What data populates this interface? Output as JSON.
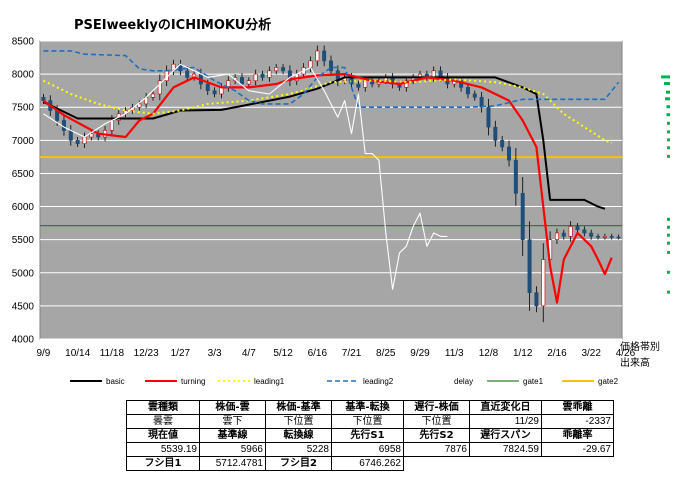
{
  "title": "PSEIweeklyのICHIMOKU分析",
  "volume_label": [
    "価格帯別",
    "出来高"
  ],
  "chart_data": {
    "type": "line",
    "title": "PSEIweeklyのICHIMOKU分析",
    "ylim": [
      4000,
      8500
    ],
    "yticks": [
      4000,
      4500,
      5000,
      5500,
      6000,
      6500,
      7000,
      7500,
      8000,
      8500
    ],
    "x_tick_labels": [
      "9/9",
      "10/14",
      "11/18",
      "12/23",
      "1/27",
      "3/3",
      "4/7",
      "5/12",
      "6/16",
      "7/21",
      "8/25",
      "9/29",
      "11/3",
      "12/8",
      "1/12",
      "2/16",
      "3/22",
      "4/26"
    ],
    "legend": [
      "basic",
      "turning",
      "leading1",
      "leading2",
      "delay",
      "gate1",
      "gate2"
    ],
    "colors": {
      "basic": "#000000",
      "turning": "#ff0000",
      "leading1": "#ffff00",
      "leading2": "#1f6fc0",
      "delay": "#ffffff",
      "gate1": "#2e7d32",
      "gate2": "#ffc000",
      "plot_bg": "#a6a6a6",
      "up": "#ffffff",
      "down": "#1f4e79",
      "volume": "#00b050"
    },
    "gate1": 5712.4781,
    "gate2": 6746.262,
    "series": [
      {
        "name": "basic",
        "values": [
          [
            0,
            7580
          ],
          [
            5,
            7330
          ],
          [
            16,
            7330
          ],
          [
            20,
            7450
          ],
          [
            26,
            7460
          ],
          [
            30,
            7540
          ],
          [
            36,
            7660
          ],
          [
            40,
            7780
          ],
          [
            44,
            7950
          ],
          [
            52,
            7950
          ],
          [
            62,
            7950
          ],
          [
            66,
            7950
          ],
          [
            70,
            7800
          ],
          [
            72,
            7700
          ],
          [
            73,
            7000
          ],
          [
            74,
            6100
          ],
          [
            79,
            6100
          ],
          [
            81,
            6000
          ],
          [
            82,
            5966
          ]
        ]
      },
      {
        "name": "turning",
        "values": [
          [
            0,
            7600
          ],
          [
            3,
            7380
          ],
          [
            8,
            7100
          ],
          [
            12,
            7050
          ],
          [
            14,
            7300
          ],
          [
            16,
            7400
          ],
          [
            19,
            7800
          ],
          [
            22,
            7950
          ],
          [
            26,
            7800
          ],
          [
            30,
            7800
          ],
          [
            34,
            7850
          ],
          [
            36,
            7920
          ],
          [
            40,
            7980
          ],
          [
            44,
            8000
          ],
          [
            48,
            7900
          ],
          [
            52,
            7850
          ],
          [
            56,
            7950
          ],
          [
            60,
            7900
          ],
          [
            64,
            7800
          ],
          [
            68,
            7600
          ],
          [
            70,
            7300
          ],
          [
            72,
            6900
          ],
          [
            73,
            6000
          ],
          [
            74,
            5100
          ],
          [
            75,
            4550
          ],
          [
            76,
            5200
          ],
          [
            78,
            5600
          ],
          [
            80,
            5400
          ],
          [
            81,
            5200
          ],
          [
            82,
            4980
          ],
          [
            83,
            5228
          ]
        ]
      },
      {
        "name": "leading1",
        "values": [
          [
            0,
            7900
          ],
          [
            4,
            7700
          ],
          [
            8,
            7550
          ],
          [
            12,
            7450
          ],
          [
            16,
            7400
          ],
          [
            20,
            7450
          ],
          [
            24,
            7550
          ],
          [
            30,
            7600
          ],
          [
            36,
            7700
          ],
          [
            42,
            7880
          ],
          [
            48,
            7900
          ],
          [
            54,
            7880
          ],
          [
            60,
            7920
          ],
          [
            66,
            7880
          ],
          [
            70,
            7800
          ],
          [
            73,
            7700
          ],
          [
            76,
            7400
          ],
          [
            79,
            7200
          ],
          [
            82,
            7000
          ],
          [
            83,
            6958
          ]
        ]
      },
      {
        "name": "leading2",
        "values": [
          [
            0,
            8350
          ],
          [
            4,
            8350
          ],
          [
            6,
            8300
          ],
          [
            12,
            8280
          ],
          [
            14,
            8080
          ],
          [
            16,
            8050
          ],
          [
            18,
            8050
          ],
          [
            22,
            8100
          ],
          [
            25,
            7900
          ],
          [
            28,
            7750
          ],
          [
            30,
            7600
          ],
          [
            32,
            7550
          ],
          [
            36,
            7550
          ],
          [
            38,
            7700
          ],
          [
            40,
            7950
          ],
          [
            42,
            8100
          ],
          [
            44,
            8100
          ],
          [
            46,
            7500
          ],
          [
            56,
            7500
          ],
          [
            62,
            7500
          ],
          [
            66,
            7520
          ],
          [
            70,
            7620
          ],
          [
            76,
            7620
          ],
          [
            82,
            7620
          ],
          [
            84,
            7876
          ]
        ]
      },
      {
        "name": "delay",
        "values": [
          [
            0,
            7400
          ],
          [
            3,
            7200
          ],
          [
            6,
            7050
          ],
          [
            9,
            7250
          ],
          [
            12,
            7400
          ],
          [
            15,
            7650
          ],
          [
            18,
            7950
          ],
          [
            20,
            8150
          ],
          [
            22,
            8050
          ],
          [
            24,
            7950
          ],
          [
            27,
            8000
          ],
          [
            30,
            7750
          ],
          [
            33,
            7700
          ],
          [
            36,
            7950
          ],
          [
            39,
            8100
          ],
          [
            41,
            7750
          ],
          [
            43,
            7350
          ],
          [
            44,
            7600
          ],
          [
            45,
            7100
          ],
          [
            46,
            7700
          ],
          [
            47,
            6800
          ],
          [
            48,
            6800
          ],
          [
            49,
            6700
          ],
          [
            50,
            5600
          ],
          [
            51,
            4750
          ],
          [
            52,
            5300
          ],
          [
            53,
            5400
          ],
          [
            54,
            5700
          ],
          [
            55,
            5900
          ],
          [
            56,
            5400
          ],
          [
            57,
            5600
          ],
          [
            58,
            5550
          ],
          [
            59,
            5550
          ]
        ]
      }
    ]
  },
  "table": {
    "rows": [
      {
        "cells": [
          "雲種類",
          "株価-雲",
          "株価-基準",
          "基準-転換",
          "遅行-株価",
          "直近変化日",
          "雲乖離"
        ],
        "kind": "hdr"
      },
      {
        "cells": [
          "曇雲",
          "雲下",
          "下位置",
          "下位置",
          "下位置",
          "11/29",
          "-2337"
        ],
        "kind": "val1"
      },
      {
        "cells": [
          "現在値",
          "基準線",
          "転換線",
          "先行S1",
          "先行S2",
          "遅行スパン",
          "乖離率"
        ],
        "kind": "hdr"
      },
      {
        "cells": [
          "5539.19",
          "5966",
          "5228",
          "6958",
          "7876",
          "7824.59",
          "-29.67"
        ],
        "kind": "val"
      },
      {
        "cells": [
          "フシ目1",
          "5712.4781",
          "フシ目2",
          "6746.262",
          "",
          "",
          ""
        ],
        "kind": "mix"
      }
    ]
  }
}
